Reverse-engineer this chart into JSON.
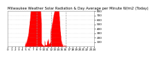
{
  "title": "Milwaukee Weather Solar Radiation & Day Average per Minute W/m2 (Today)",
  "bar_color": "#ff0000",
  "bg_color": "#ffffff",
  "grid_color": "#999999",
  "ylim": [
    0,
    800
  ],
  "yticks": [
    100,
    200,
    300,
    400,
    500,
    600,
    700,
    800
  ],
  "num_points": 1440,
  "vline_positions": [
    480,
    720,
    960
  ],
  "title_fontsize": 3.8,
  "tick_fontsize": 3.0
}
